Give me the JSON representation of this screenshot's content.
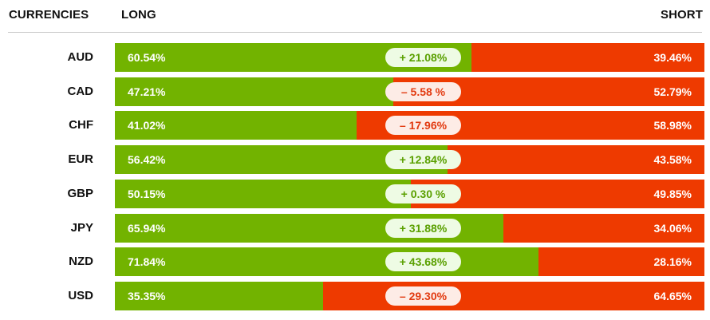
{
  "header": {
    "currencies_label": "CURRENCIES",
    "long_label": "LONG",
    "short_label": "SHORT"
  },
  "colors": {
    "long": "#72b300",
    "short": "#ee3a00",
    "pill_positive_bg": "#eefbe4",
    "pill_positive_text": "#5aa000",
    "pill_negative_bg": "#fdece6",
    "pill_negative_text": "#e23a10"
  },
  "chart_data": {
    "type": "bar",
    "orientation": "horizontal",
    "stacked": true,
    "categories": [
      "AUD",
      "CAD",
      "CHF",
      "EUR",
      "GBP",
      "JPY",
      "NZD",
      "USD"
    ],
    "series": [
      {
        "name": "LONG",
        "values": [
          60.54,
          47.21,
          41.02,
          56.42,
          50.15,
          65.94,
          71.84,
          35.35
        ]
      },
      {
        "name": "SHORT",
        "values": [
          39.46,
          52.79,
          58.98,
          43.58,
          49.85,
          34.06,
          28.16,
          64.65
        ]
      }
    ],
    "xlim": [
      0,
      100
    ]
  },
  "rows": [
    {
      "currency": "AUD",
      "long": "60.54%",
      "short": "39.46%",
      "diff": "+ 21.08%",
      "sign": "pos"
    },
    {
      "currency": "CAD",
      "long": "47.21%",
      "short": "52.79%",
      "diff": "– 5.58 %",
      "sign": "neg"
    },
    {
      "currency": "CHF",
      "long": "41.02%",
      "short": "58.98%",
      "diff": "– 17.96%",
      "sign": "neg"
    },
    {
      "currency": "EUR",
      "long": "56.42%",
      "short": "43.58%",
      "diff": "+ 12.84%",
      "sign": "pos"
    },
    {
      "currency": "GBP",
      "long": "50.15%",
      "short": "49.85%",
      "diff": "+ 0.30 %",
      "sign": "pos"
    },
    {
      "currency": "JPY",
      "long": "65.94%",
      "short": "34.06%",
      "diff": "+ 31.88%",
      "sign": "pos"
    },
    {
      "currency": "NZD",
      "long": "71.84%",
      "short": "28.16%",
      "diff": "+ 43.68%",
      "sign": "pos"
    },
    {
      "currency": "USD",
      "long": "35.35%",
      "short": "64.65%",
      "diff": "– 29.30%",
      "sign": "neg"
    }
  ]
}
